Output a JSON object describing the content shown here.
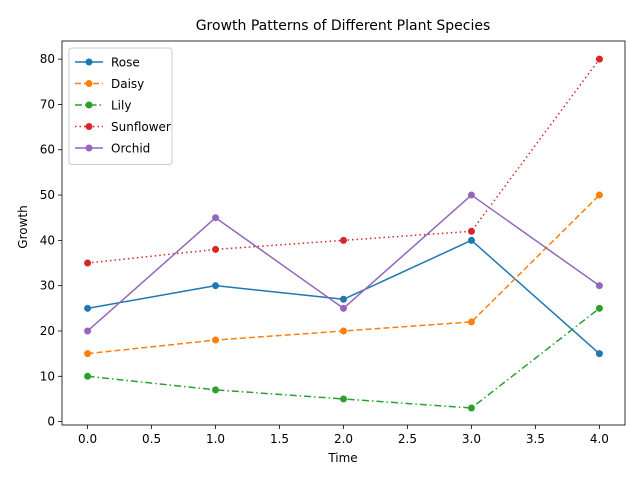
{
  "chart_data": {
    "type": "line",
    "title": "Growth Patterns of Different Plant Species",
    "xlabel": "Time",
    "ylabel": "Growth",
    "xlim": [
      -0.2,
      4.2
    ],
    "ylim": [
      -0.75,
      84
    ],
    "x_ticks": [
      0.0,
      0.5,
      1.0,
      1.5,
      2.0,
      2.5,
      3.0,
      3.5,
      4.0
    ],
    "x_tick_labels": [
      "0.0",
      "0.5",
      "1.0",
      "1.5",
      "2.0",
      "2.5",
      "3.0",
      "3.5",
      "4.0"
    ],
    "y_ticks": [
      0,
      10,
      20,
      30,
      40,
      50,
      60,
      70,
      80
    ],
    "y_tick_labels": [
      "0",
      "10",
      "20",
      "30",
      "40",
      "50",
      "60",
      "70",
      "80"
    ],
    "grid": false,
    "legend_position": "top-left",
    "x": [
      0,
      1,
      2,
      3,
      4
    ],
    "series": [
      {
        "name": "Rose",
        "values": [
          25,
          30,
          27,
          40,
          15
        ],
        "color": "#1f77b4",
        "linestyle": "solid"
      },
      {
        "name": "Daisy",
        "values": [
          15,
          18,
          20,
          22,
          50
        ],
        "color": "#ff7f0e",
        "linestyle": "dashed"
      },
      {
        "name": "Lily",
        "values": [
          10,
          7,
          5,
          3,
          25
        ],
        "color": "#2ca02c",
        "linestyle": "dashdot"
      },
      {
        "name": "Sunflower",
        "values": [
          35,
          38,
          40,
          42,
          80
        ],
        "color": "#d62728",
        "linestyle": "dotted"
      },
      {
        "name": "Orchid",
        "values": [
          20,
          45,
          25,
          50,
          30
        ],
        "color": "#9467bd",
        "linestyle": "solid"
      }
    ]
  }
}
